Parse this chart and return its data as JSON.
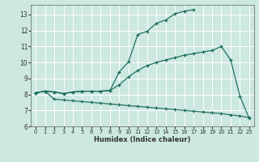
{
  "xlabel": "Humidex (Indice chaleur)",
  "bg_color": "#cce8e0",
  "line_color": "#1a6b5a",
  "grid_color": "#ffffff",
  "xlim": [
    -0.5,
    23.5
  ],
  "ylim": [
    6,
    13.6
  ],
  "yticks": [
    6,
    7,
    8,
    9,
    10,
    11,
    12,
    13
  ],
  "xticks": [
    0,
    1,
    2,
    3,
    4,
    5,
    6,
    7,
    8,
    9,
    10,
    11,
    12,
    13,
    14,
    15,
    16,
    17,
    18,
    19,
    20,
    21,
    22,
    23
  ],
  "curve1_x": [
    0,
    1,
    2,
    3,
    4,
    5,
    6,
    7,
    8,
    9,
    10,
    11,
    12,
    13,
    14,
    15,
    16,
    17
  ],
  "curve1_y": [
    8.1,
    8.2,
    8.15,
    8.05,
    8.15,
    8.2,
    8.2,
    8.2,
    8.25,
    9.4,
    10.05,
    11.75,
    11.95,
    12.45,
    12.65,
    13.05,
    13.2,
    13.3
  ],
  "curve2_x": [
    0,
    1,
    2,
    3,
    4,
    5,
    6,
    7,
    8,
    9,
    10,
    11,
    12,
    13,
    14,
    15,
    16,
    17,
    18,
    19,
    20,
    21,
    22,
    23
  ],
  "curve2_y": [
    8.1,
    8.2,
    8.15,
    8.05,
    8.15,
    8.2,
    8.2,
    8.2,
    8.25,
    8.6,
    9.1,
    9.5,
    9.8,
    10.0,
    10.15,
    10.3,
    10.45,
    10.55,
    10.65,
    10.75,
    11.0,
    10.15,
    7.9,
    6.5
  ],
  "curve3_x": [
    0,
    1,
    2,
    3,
    4,
    5,
    6,
    7,
    8,
    9,
    10,
    11,
    12,
    13,
    14,
    15,
    16,
    17,
    18,
    19,
    20,
    21,
    22,
    23
  ],
  "curve3_y": [
    8.1,
    8.2,
    7.7,
    7.65,
    7.6,
    7.55,
    7.5,
    7.45,
    7.4,
    7.35,
    7.3,
    7.25,
    7.2,
    7.15,
    7.1,
    7.05,
    7.0,
    6.95,
    6.9,
    6.85,
    6.8,
    6.72,
    6.65,
    6.55
  ]
}
